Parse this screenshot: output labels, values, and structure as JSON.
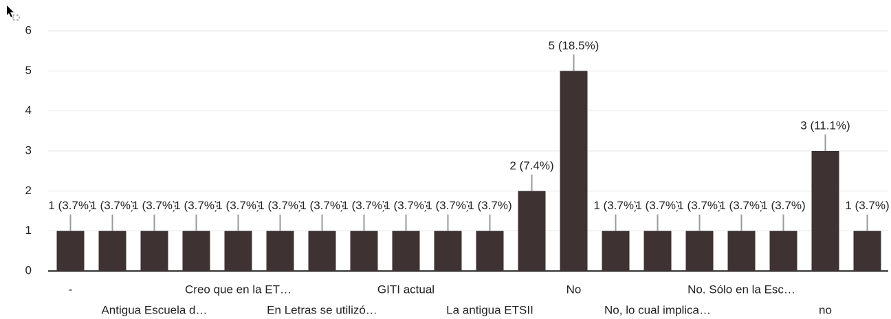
{
  "chart_data": {
    "type": "bar",
    "categories": [
      "-",
      null,
      "Antigua Escuela d…",
      null,
      "Creo que en la ET…",
      null,
      "En Letras se utilizó…",
      null,
      "GITI actual",
      null,
      "La antigua ETSII",
      null,
      "No",
      null,
      "No, lo cual implica…",
      null,
      "No. Sólo en la Esc…",
      null,
      "no",
      null
    ],
    "values": [
      1,
      1,
      1,
      1,
      1,
      1,
      1,
      1,
      1,
      1,
      1,
      2,
      5,
      1,
      1,
      1,
      1,
      1,
      3,
      1
    ],
    "value_labels": [
      "1 (3.7%)",
      "1 (3.7%)",
      "1 (3.7%)",
      "1 (3.7%)",
      "1 (3.7%)",
      "1 (3.7%)",
      "1 (3.7%)",
      "1 (3.7%)",
      "1 (3.7%)",
      "1 (3.7%)",
      "1 (3.7%)",
      "2 (7.4%)",
      "5 (18.5%)",
      "1 (3.7%)",
      "1 (3.7%)",
      "1 (3.7%)",
      "1 (3.7%)",
      "1 (3.7%)",
      "3 (11.1%)",
      "1 (3.7%)"
    ],
    "color": "#3e3232",
    "ylim": [
      0,
      6
    ],
    "yticks": [
      0,
      1,
      2,
      3,
      4,
      5,
      6
    ],
    "grid": true
  }
}
